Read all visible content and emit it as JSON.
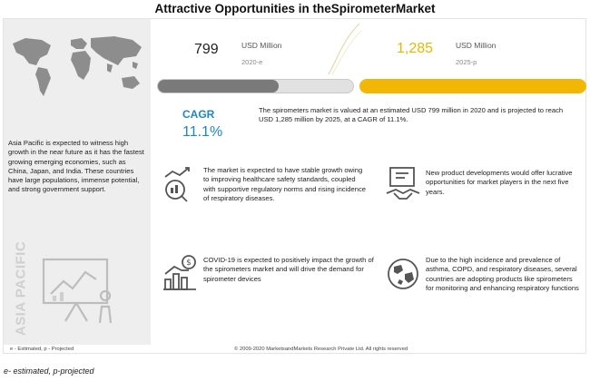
{
  "title": "Attractive Opportunities in theSpirometerMarket",
  "left_panel": {
    "text": "Asia Pacific is expected to witness high growth in the near future as it has the fastest growing emerging economies, such as China, Japan, and India. These countries have large populations, immense potential, and strong government support.",
    "vertical_label": "ASIA PACIFIC",
    "map_icon": "world-map-icon",
    "presentation_icon": "presentation-board-icon"
  },
  "market": {
    "value_2020": "799",
    "unit_2020": "USD Million",
    "year_2020": "2020-e",
    "value_2025": "1,285",
    "unit_2025": "USD Million",
    "year_2025": "2025-p",
    "bar_2020_fill_fraction": 0.62,
    "bar_2025_fill_fraction": 1.0
  },
  "cagr": {
    "label": "CAGR",
    "value": "11.1%"
  },
  "summary": "The spirometers market is valued at an estimated USD 799 million in 2020 and is projected to reach USD 1,285 million by 2025, at a CAGR of 11.1%.",
  "points": [
    {
      "icon": "growth-chart-icon",
      "text": "The market is expected to have stable growth owing to improving healthcare safety standards, coupled with supportive regulatory norms and rising incidence of respiratory diseases."
    },
    {
      "icon": "handshake-icon",
      "text": "New product developments would offer lucrative opportunities for market players in the next five years."
    },
    {
      "icon": "dollar-bar-chart-icon",
      "text": "COVID-19 is expected to positively impact the growth of the spirometers market and will drive the demand for spirometer devices"
    },
    {
      "icon": "globe-icon",
      "text": "Due to the high incidence and prevalence of asthma, COPD, and respiratory diseases, several countries are adopting products like spirometers for monitoring and enhancing respiratory functions"
    }
  ],
  "footer": {
    "left": "e - Estimated, p - Projected",
    "center": "© 2009-2020 MarketsandMarkets Research Private Ltd. All rights reserved"
  },
  "bottom_note": "e- estimated, p-projected",
  "colors": {
    "accent_blue": "#1f86c4",
    "gold": "#f2b705",
    "grey_bar": "#7a7a7a",
    "panel_bg": "#eeeeee"
  }
}
